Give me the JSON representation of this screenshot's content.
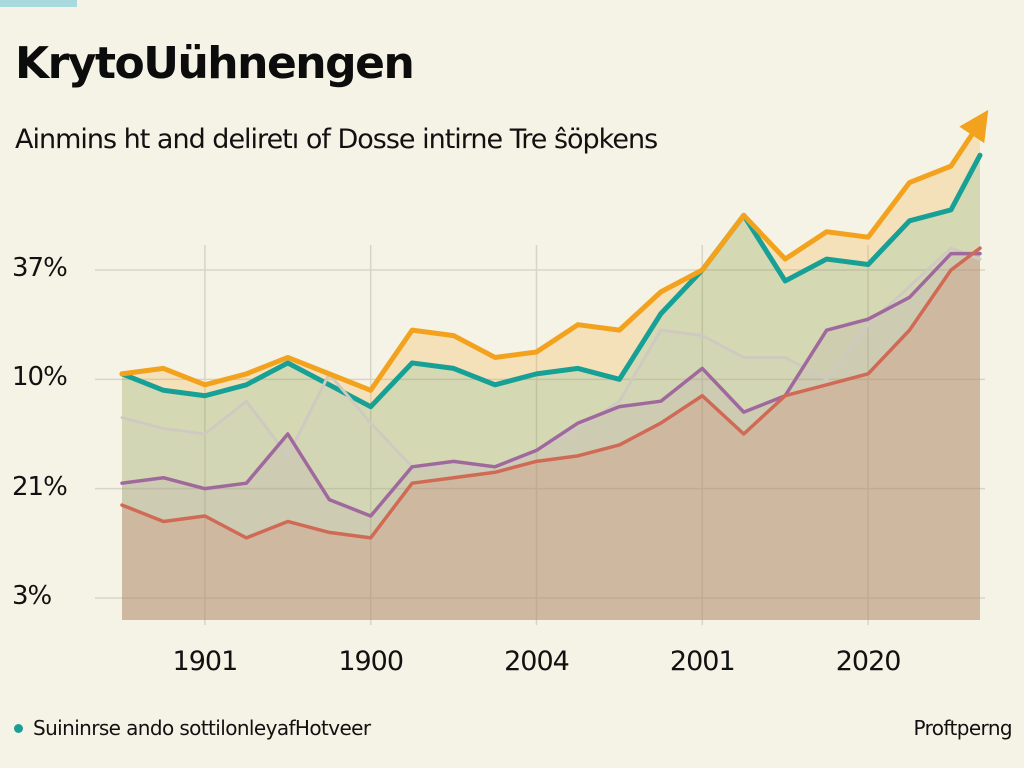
{
  "header": {
    "title": "KrytoUühnengen",
    "subtitle": "Ainmins ht and deliretı of Dosse intirne Tre ŝöpkens"
  },
  "footer": {
    "legend_label": "Suininrse ando sottilonleyafHotveer",
    "source_label": "Proftperng"
  },
  "colors": {
    "background": "#f5f2e6",
    "accent_tab": "#a8d9dc",
    "orange": "#f3a21d",
    "teal": "#17a096",
    "gray": "#cfcac0",
    "purple": "#a0699d",
    "red": "#d06a55",
    "grid": "#d8d4c8"
  },
  "chart_data": {
    "type": "area",
    "title": "KrytoUühnengen",
    "subtitle": "Ainmins ht and deliretı of Dosse intirne Tre ŝöpkens",
    "xlabel": "",
    "ylabel": "",
    "y_tick_labels": [
      "37%",
      "10%",
      "21%",
      "3%"
    ],
    "y_scale_note": "ordinal: values expressed as position on tick scale, 0 = '3%' gridline (bottom), 3 = '37%' gridline (top)",
    "ylim": [
      -0.2,
      4.0
    ],
    "x_tick_labels": [
      "1901",
      "1900",
      "2004",
      "2001",
      "2020"
    ],
    "x_tick_index": [
      1.0,
      3.0,
      5.0,
      7.0,
      9.0
    ],
    "xlim": [
      0.0,
      10.35
    ],
    "grid": true,
    "legend": {
      "position": "bottom-left",
      "entries": [
        "Suininrse ando sottilonleyafHotveer"
      ]
    },
    "annotations": [
      {
        "type": "arrow",
        "series": "Orange",
        "direction": "up-right",
        "at": "end"
      }
    ],
    "x": [
      0.0,
      0.5,
      1.0,
      1.5,
      2.0,
      2.5,
      3.0,
      3.5,
      4.0,
      4.5,
      5.0,
      5.5,
      6.0,
      6.5,
      7.0,
      7.5,
      8.0,
      8.5,
      9.0,
      9.5,
      10.0,
      10.35
    ],
    "series": [
      {
        "name": "Orange",
        "color": "#f3a21d",
        "values": [
          2.05,
          2.1,
          1.95,
          2.05,
          2.2,
          2.05,
          1.9,
          2.45,
          2.4,
          2.2,
          2.25,
          2.5,
          2.45,
          2.8,
          3.0,
          3.5,
          3.1,
          3.35,
          3.3,
          3.8,
          3.95,
          4.35
        ]
      },
      {
        "name": "Teal",
        "color": "#17a096",
        "values": [
          2.05,
          1.9,
          1.85,
          1.95,
          2.15,
          1.95,
          1.75,
          2.15,
          2.1,
          1.95,
          2.05,
          2.1,
          2.0,
          2.6,
          3.0,
          3.5,
          2.9,
          3.1,
          3.05,
          3.45,
          3.55,
          4.05
        ]
      },
      {
        "name": "Gray",
        "color": "#cfcac0",
        "values": [
          1.65,
          1.55,
          1.5,
          1.8,
          1.3,
          2.05,
          1.6,
          1.2,
          1.2,
          1.15,
          1.35,
          1.55,
          1.8,
          2.45,
          2.4,
          2.2,
          2.2,
          2.0,
          2.5,
          2.85,
          3.2,
          3.1
        ]
      },
      {
        "name": "Purple",
        "color": "#a0699d",
        "values": [
          1.05,
          1.1,
          1.0,
          1.05,
          1.5,
          0.9,
          0.75,
          1.2,
          1.25,
          1.2,
          1.35,
          1.6,
          1.75,
          1.8,
          2.1,
          1.7,
          1.85,
          2.45,
          2.55,
          2.75,
          3.15,
          3.15
        ]
      },
      {
        "name": "Red",
        "color": "#d06a55",
        "values": [
          0.85,
          0.7,
          0.75,
          0.55,
          0.7,
          0.6,
          0.55,
          1.05,
          1.1,
          1.15,
          1.25,
          1.3,
          1.4,
          1.6,
          1.85,
          1.5,
          1.85,
          1.95,
          2.05,
          2.45,
          3.0,
          3.2
        ]
      }
    ]
  }
}
